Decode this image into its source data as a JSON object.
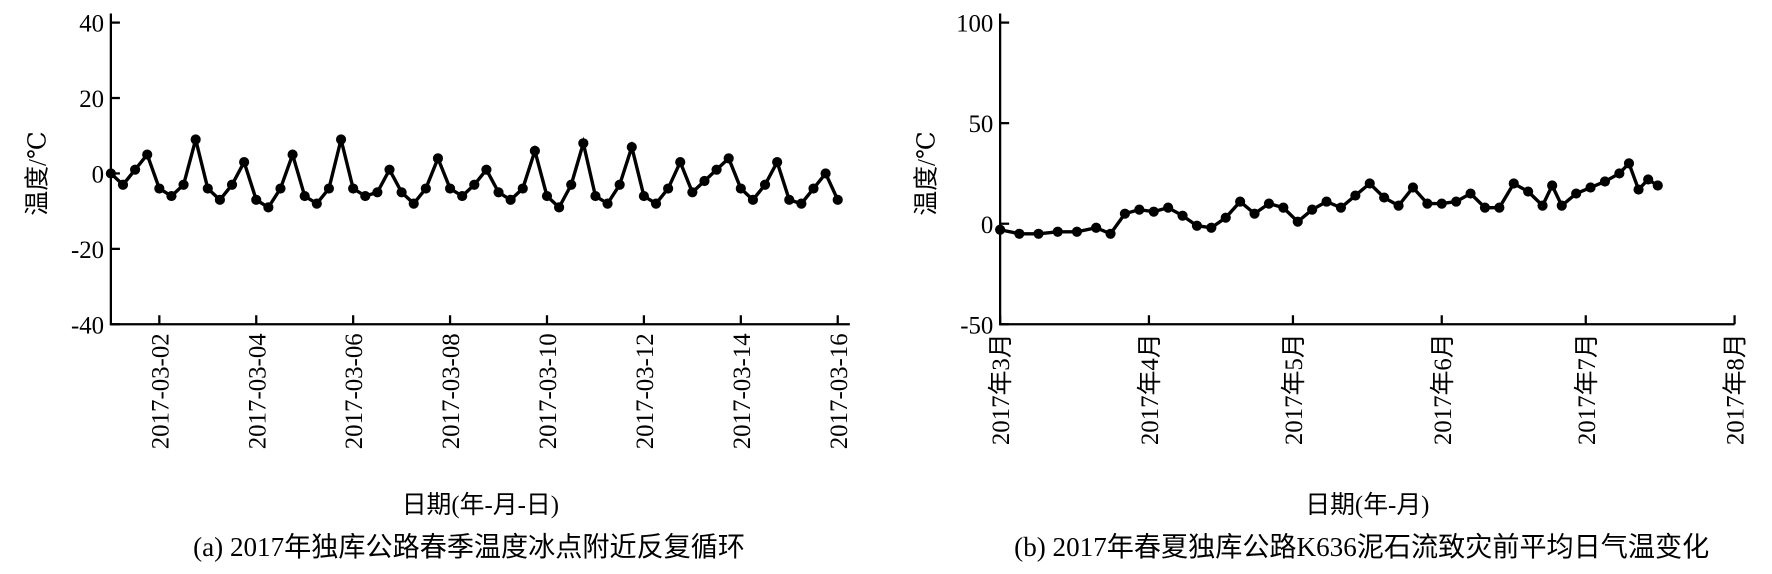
{
  "chart_data": [
    {
      "type": "line",
      "caption": "(a) 2017年独库公路春季温度冰点附近反复循环",
      "xlabel": "日期(年-月-日)",
      "ylabel": "温度/℃",
      "color": "#000000",
      "x": [
        "2017-03-01T00:00",
        "2017-03-01T06:00",
        "2017-03-01T12:00",
        "2017-03-01T18:00",
        "2017-03-02T00:00",
        "2017-03-02T06:00",
        "2017-03-02T12:00",
        "2017-03-02T18:00",
        "2017-03-03T00:00",
        "2017-03-03T06:00",
        "2017-03-03T12:00",
        "2017-03-03T18:00",
        "2017-03-04T00:00",
        "2017-03-04T06:00",
        "2017-03-04T12:00",
        "2017-03-04T18:00",
        "2017-03-05T00:00",
        "2017-03-05T06:00",
        "2017-03-05T12:00",
        "2017-03-05T18:00",
        "2017-03-06T00:00",
        "2017-03-06T06:00",
        "2017-03-06T12:00",
        "2017-03-06T18:00",
        "2017-03-07T00:00",
        "2017-03-07T06:00",
        "2017-03-07T12:00",
        "2017-03-07T18:00",
        "2017-03-08T00:00",
        "2017-03-08T06:00",
        "2017-03-08T12:00",
        "2017-03-08T18:00",
        "2017-03-09T00:00",
        "2017-03-09T06:00",
        "2017-03-09T12:00",
        "2017-03-09T18:00",
        "2017-03-10T00:00",
        "2017-03-10T06:00",
        "2017-03-10T12:00",
        "2017-03-10T18:00",
        "2017-03-11T00:00",
        "2017-03-11T06:00",
        "2017-03-11T12:00",
        "2017-03-11T18:00",
        "2017-03-12T00:00",
        "2017-03-12T06:00",
        "2017-03-12T12:00",
        "2017-03-12T18:00",
        "2017-03-13T00:00",
        "2017-03-13T06:00",
        "2017-03-13T12:00",
        "2017-03-13T18:00",
        "2017-03-14T00:00",
        "2017-03-14T06:00",
        "2017-03-14T12:00",
        "2017-03-14T18:00",
        "2017-03-15T00:00",
        "2017-03-15T06:00",
        "2017-03-15T12:00",
        "2017-03-15T18:00",
        "2017-03-16T00:00"
      ],
      "values": [
        0,
        -3,
        1,
        5,
        -4,
        -6,
        -3,
        9,
        -4,
        -7,
        -3,
        3,
        -7,
        -9,
        -4,
        5,
        -6,
        -8,
        -4,
        9,
        -4,
        -6,
        -5,
        1,
        -5,
        -8,
        -4,
        4,
        -4,
        -6,
        -3,
        1,
        -5,
        -7,
        -4,
        6,
        -6,
        -9,
        -3,
        8,
        -6,
        -8,
        -3,
        7,
        -6,
        -8,
        -4,
        3,
        -5,
        -2,
        1,
        4,
        -4,
        -7,
        -3,
        3,
        -7,
        -8,
        -4,
        0,
        -7
      ],
      "xlim": [
        "2017-03-01T00:00",
        "2017-03-16T06:00"
      ],
      "xticks": [
        "2017-03-02",
        "2017-03-04",
        "2017-03-06",
        "2017-03-08",
        "2017-03-10",
        "2017-03-12",
        "2017-03-14",
        "2017-03-16"
      ],
      "ylim": [
        -40,
        40
      ],
      "yticks": [
        -40,
        -20,
        0,
        20,
        40
      ]
    },
    {
      "type": "line",
      "caption": "(b) 2017年春夏独库公路K636泥石流致灾前平均日气温变化",
      "xlabel": "日期(年-月)",
      "ylabel": "温度/℃",
      "color": "#000000",
      "x": [
        "2017-03-01",
        "2017-03-05",
        "2017-03-09",
        "2017-03-13",
        "2017-03-17",
        "2017-03-21",
        "2017-03-24",
        "2017-03-27",
        "2017-03-30",
        "2017-04-02",
        "2017-04-05",
        "2017-04-08",
        "2017-04-11",
        "2017-04-14",
        "2017-04-17",
        "2017-04-20",
        "2017-04-23",
        "2017-04-26",
        "2017-04-29",
        "2017-05-02",
        "2017-05-05",
        "2017-05-08",
        "2017-05-11",
        "2017-05-14",
        "2017-05-17",
        "2017-05-20",
        "2017-05-23",
        "2017-05-26",
        "2017-05-29",
        "2017-06-01",
        "2017-06-04",
        "2017-06-07",
        "2017-06-10",
        "2017-06-13",
        "2017-06-16",
        "2017-06-19",
        "2017-06-22",
        "2017-06-24",
        "2017-06-26",
        "2017-06-29",
        "2017-07-02",
        "2017-07-05",
        "2017-07-08",
        "2017-07-10",
        "2017-07-12",
        "2017-07-14",
        "2017-07-16"
      ],
      "values": [
        -3,
        -5,
        -5,
        -4,
        -4,
        -2,
        -5,
        5,
        7,
        6,
        8,
        4,
        -1,
        -2,
        3,
        11,
        5,
        10,
        8,
        1,
        7,
        11,
        8,
        14,
        20,
        13,
        9,
        18,
        10,
        10,
        11,
        15,
        8,
        8,
        20,
        16,
        9,
        19,
        9,
        15,
        18,
        21,
        25,
        30,
        17,
        22,
        19
      ],
      "xlim": [
        "2017-03-01",
        "2017-08-01"
      ],
      "xticks": [
        {
          "value": "2017-03-01",
          "label": "2017年3月"
        },
        {
          "value": "2017-04-01",
          "label": "2017年4月"
        },
        {
          "value": "2017-05-01",
          "label": "2017年5月"
        },
        {
          "value": "2017-06-01",
          "label": "2017年6月"
        },
        {
          "value": "2017-07-01",
          "label": "2017年7月"
        },
        {
          "value": "2017-08-01",
          "label": "2017年8月"
        }
      ],
      "ylim": [
        -50,
        100
      ],
      "yticks": [
        -50,
        0,
        50,
        100
      ]
    }
  ]
}
